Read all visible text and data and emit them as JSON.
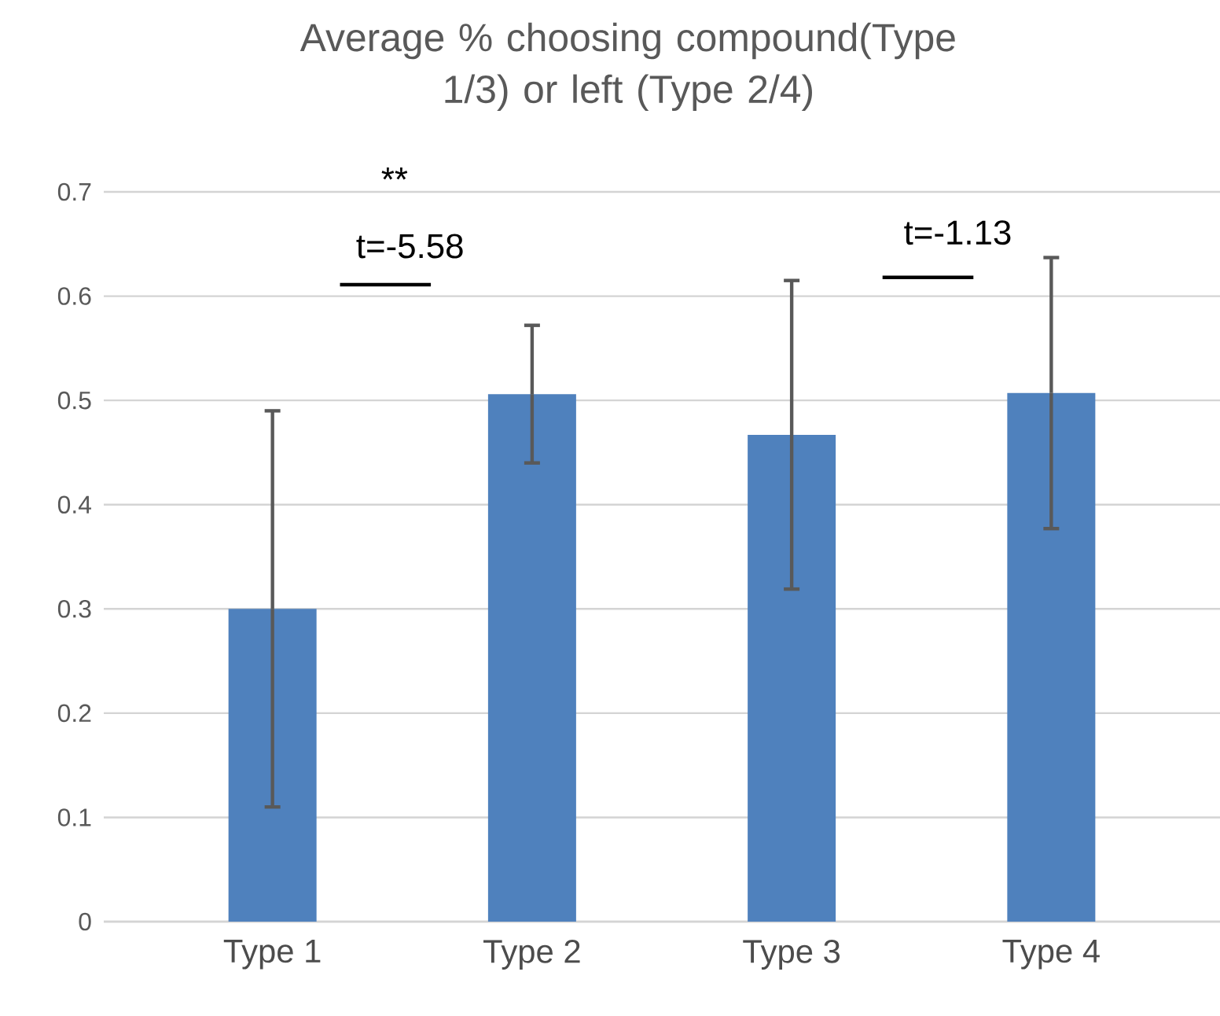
{
  "chart_data": {
    "type": "bar",
    "title": "Average % choosing compound(Type 1/3) or left (Type 2/4)",
    "categories": [
      "Type 1",
      "Type 2",
      "Type 3",
      "Type 4"
    ],
    "values": [
      0.3,
      0.506,
      0.467,
      0.507
    ],
    "errors": [
      0.19,
      0.066,
      0.148,
      0.13
    ],
    "color": "#4f81bd",
    "ylim": [
      0,
      0.7
    ],
    "yticks": [
      0,
      0.1,
      0.2,
      0.3,
      0.4,
      0.5,
      0.6,
      0.7
    ],
    "grid": "y",
    "annotations": [
      "**",
      "t=-5.58",
      "t=-1.13"
    ]
  }
}
